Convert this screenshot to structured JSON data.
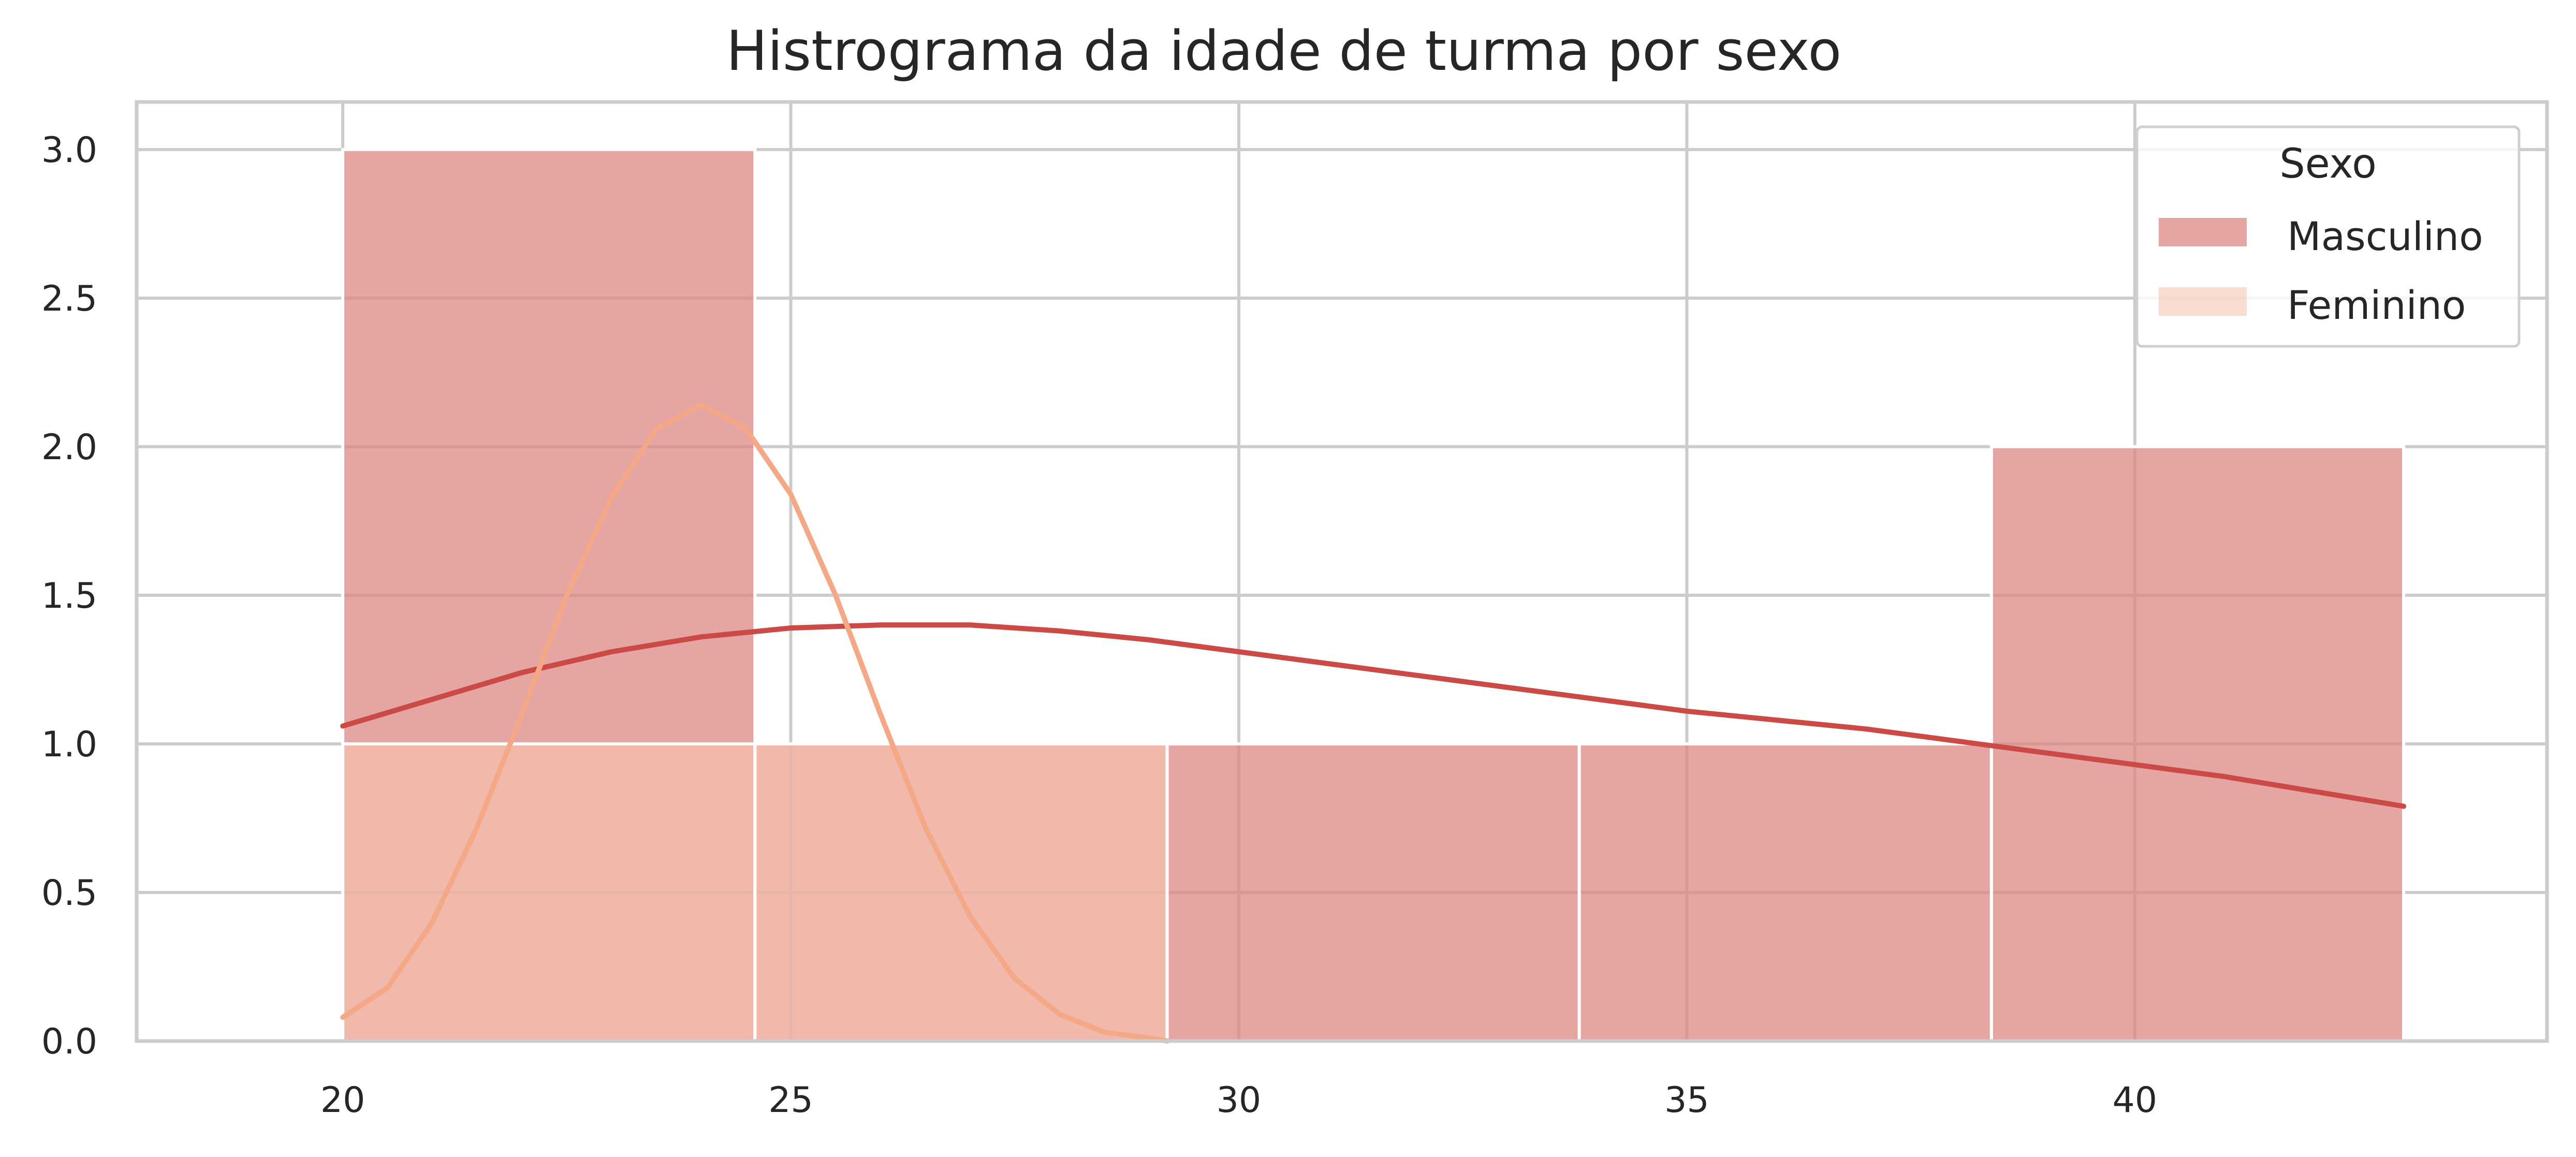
{
  "chart_data": {
    "type": "histogram",
    "title": "Histrograma da idade de turma por sexo",
    "xlabel": "",
    "ylabel": "",
    "x_range": [
      17.7,
      44.6
    ],
    "y_range": [
      0,
      3.16
    ],
    "x_ticks": [
      20,
      25,
      30,
      35,
      40
    ],
    "x_tick_labels": [
      "20",
      "25",
      "30",
      "35",
      "40"
    ],
    "y_ticks": [
      0.0,
      0.5,
      1.0,
      1.5,
      2.0,
      2.5,
      3.0
    ],
    "y_tick_labels": [
      "0.0",
      "0.5",
      "1.0",
      "1.5",
      "2.0",
      "2.5",
      "3.0"
    ],
    "grid": true,
    "legend": {
      "title": "Sexo",
      "placement": "top-right"
    },
    "series": [
      {
        "name": "Masculino",
        "color": "#dc8784",
        "line_color": "#cc4a45",
        "bins": [
          {
            "x0": 20.0,
            "x1": 24.6,
            "count": 3
          },
          {
            "x0": 24.6,
            "x1": 29.2,
            "count": 1
          },
          {
            "x0": 29.2,
            "x1": 33.8,
            "count": 1
          },
          {
            "x0": 33.8,
            "x1": 38.4,
            "count": 1
          },
          {
            "x0": 38.4,
            "x1": 43.0,
            "count": 2
          }
        ],
        "kde": [
          [
            20,
            1.06
          ],
          [
            21,
            1.15
          ],
          [
            22,
            1.24
          ],
          [
            23,
            1.31
          ],
          [
            24,
            1.36
          ],
          [
            25,
            1.39
          ],
          [
            26,
            1.4
          ],
          [
            27,
            1.4
          ],
          [
            28,
            1.38
          ],
          [
            29,
            1.35
          ],
          [
            30,
            1.31
          ],
          [
            31,
            1.27
          ],
          [
            32,
            1.23
          ],
          [
            33,
            1.19
          ],
          [
            34,
            1.15
          ],
          [
            35,
            1.11
          ],
          [
            36,
            1.08
          ],
          [
            37,
            1.05
          ],
          [
            38,
            1.01
          ],
          [
            39,
            0.97
          ],
          [
            40,
            0.93
          ],
          [
            41,
            0.89
          ],
          [
            42,
            0.84
          ],
          [
            43,
            0.79
          ]
        ]
      },
      {
        "name": "Feminino",
        "color": "#f6c7b3",
        "line_color": "#f5a886",
        "bins": [
          {
            "x0": 20.0,
            "x1": 24.6,
            "count": 1
          },
          {
            "x0": 24.6,
            "x1": 29.2,
            "count": 1
          }
        ],
        "kde": [
          [
            20.0,
            0.08
          ],
          [
            20.5,
            0.18
          ],
          [
            21.0,
            0.4
          ],
          [
            21.5,
            0.72
          ],
          [
            22.0,
            1.1
          ],
          [
            22.5,
            1.5
          ],
          [
            23.0,
            1.83
          ],
          [
            23.5,
            2.06
          ],
          [
            24.0,
            2.14
          ],
          [
            24.5,
            2.06
          ],
          [
            25.0,
            1.84
          ],
          [
            25.5,
            1.5
          ],
          [
            26.0,
            1.1
          ],
          [
            26.5,
            0.72
          ],
          [
            27.0,
            0.42
          ],
          [
            27.5,
            0.21
          ],
          [
            28.0,
            0.09
          ],
          [
            28.5,
            0.03
          ],
          [
            29.0,
            0.01
          ],
          [
            29.2,
            0.0
          ]
        ]
      }
    ]
  }
}
